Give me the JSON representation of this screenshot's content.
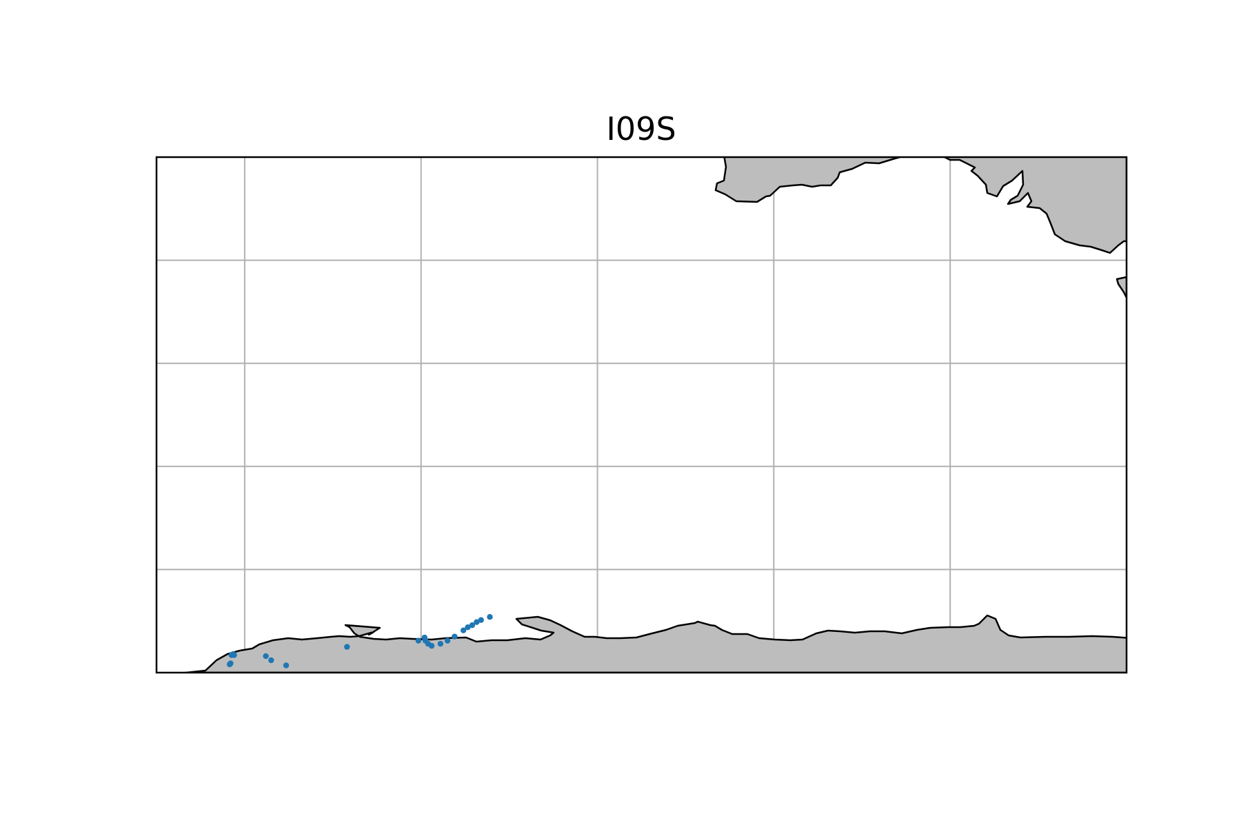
{
  "figure": {
    "title": "I09S"
  },
  "colors": {
    "station_marker": "#1f77b4",
    "land_fill": "#bdbdbd",
    "coastline": "#000000",
    "gridline": "#b0b0b0",
    "frame": "#000000",
    "background": "#ffffff"
  },
  "map": {
    "projection": "plate-carree",
    "extent_lon": [
      30,
      140
    ],
    "extent_lat": [
      -70,
      -20
    ],
    "gridlines": true,
    "gridline_lons": [
      40,
      60,
      80,
      100,
      120,
      140,
      160
    ],
    "gridline_lats": [
      -20,
      -30,
      -40,
      -50,
      -60,
      -70,
      -80
    ]
  },
  "chart_data": {
    "type": "scatter",
    "title": "I09S",
    "xlabel": "",
    "ylabel": "",
    "grid": true,
    "series": [
      {
        "x": [
          38.5,
          38.7,
          38.8,
          38.3,
          38.4,
          42.4,
          43.0,
          44.7,
          51.6,
          60.4,
          59.7,
          60.5,
          60.8,
          61.2,
          62.2,
          63.0,
          63.8,
          64.8,
          65.3,
          65.8,
          66.3,
          66.8,
          67.8
        ],
        "y": [
          -68.3,
          -68.2,
          -68.3,
          -69.2,
          -69.1,
          -68.4,
          -68.8,
          -69.3,
          -67.5,
          -66.6,
          -66.9,
          -66.9,
          -67.2,
          -67.4,
          -67.2,
          -66.9,
          -66.5,
          -65.9,
          -65.6,
          -65.4,
          -65.1,
          -64.9,
          -64.6
        ]
      }
    ]
  }
}
